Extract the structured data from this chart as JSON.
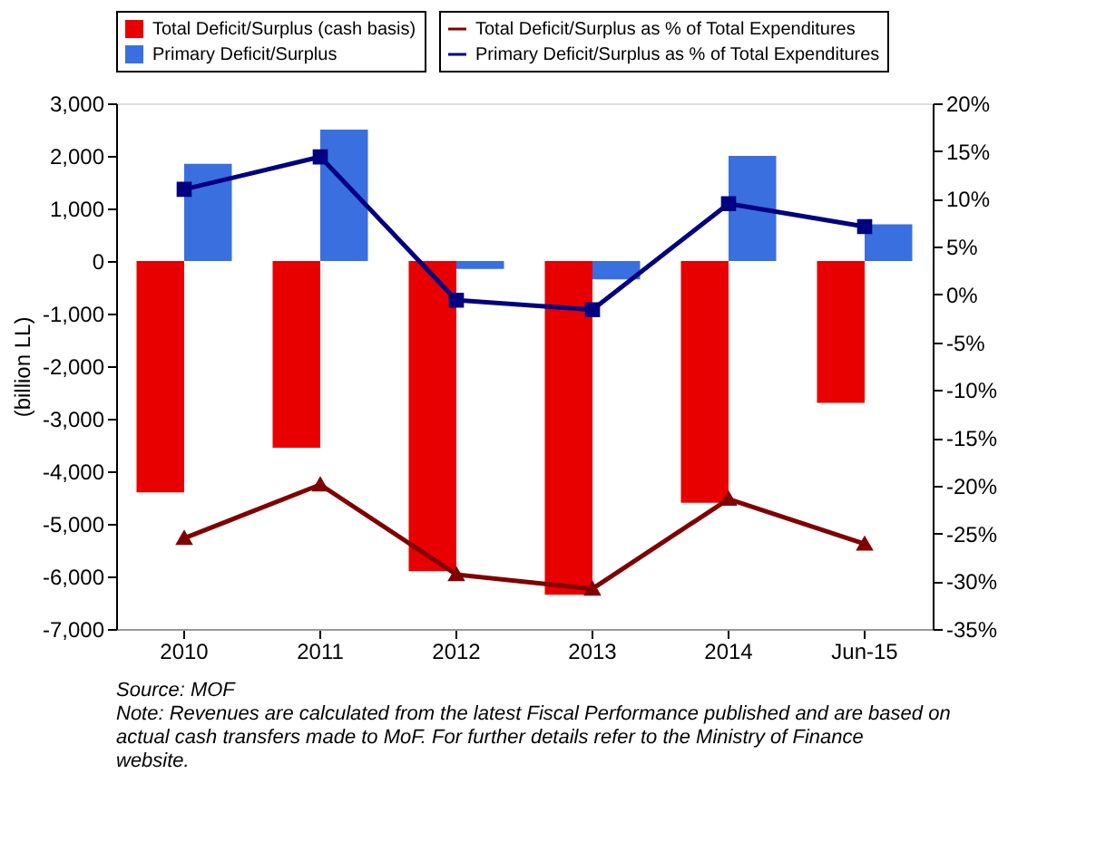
{
  "chart_data": {
    "type": "bar",
    "ylabel": "(billion LL)",
    "categories": [
      "2010",
      "2011",
      "2012",
      "2013",
      "2014",
      "Jun-15"
    ],
    "series": [
      {
        "name": "Total Deficit/Surplus (cash basis)",
        "color": "#e80000",
        "values": [
          -4400,
          -3550,
          -5900,
          -6350,
          -4600,
          -2700
        ]
      },
      {
        "name": "Primary Deficit/Surplus",
        "color": "#3a6fe0",
        "values": [
          1850,
          2500,
          -150,
          -350,
          2000,
          700
        ]
      },
      {
        "name": "Total Deficit/Surplus as % of Total Expenditures",
        "type": "line",
        "axis": "y2",
        "marker": "triangle",
        "color": "#800000",
        "values": [
          -25.5,
          -19.9,
          -29.3,
          -30.8,
          -21.4,
          -26.1
        ]
      },
      {
        "name": "Primary Deficit/Surplus as % of Total Expenditures",
        "type": "line",
        "axis": "y2",
        "marker": "square",
        "color": "#000080",
        "values": [
          11.0,
          14.4,
          -0.6,
          -1.6,
          9.5,
          7.1
        ]
      }
    ],
    "ylim": [
      -7000,
      3000
    ],
    "yticks": [
      {
        "value": -7000,
        "label": "-7,000"
      },
      {
        "value": -6000,
        "label": "-6,000"
      },
      {
        "value": -5000,
        "label": "-5,000"
      },
      {
        "value": -4000,
        "label": "-4,000"
      },
      {
        "value": -3000,
        "label": "-3,000"
      },
      {
        "value": -2000,
        "label": "-2,000"
      },
      {
        "value": -1000,
        "label": "-1,000"
      },
      0,
      {
        "value": 1000,
        "label": "1,000"
      },
      {
        "value": 2000,
        "label": "2,000"
      },
      {
        "value": 3000,
        "label": "3,000"
      }
    ],
    "y2lim": [
      -35,
      20
    ],
    "y2ticks": [
      {
        "value": -35,
        "label": "-35%"
      },
      {
        "value": -30,
        "label": "-30%"
      },
      {
        "value": -25,
        "label": "-25%"
      },
      {
        "value": -20,
        "label": "-20%"
      },
      {
        "value": -15,
        "label": "-15%"
      },
      {
        "value": -10,
        "label": "-10%"
      },
      {
        "value": -5,
        "label": "-5%"
      },
      {
        "value": 0,
        "label": "0%"
      },
      {
        "value": 5,
        "label": "5%"
      },
      {
        "value": 10,
        "label": "10%"
      },
      {
        "value": 15,
        "label": "15%"
      },
      {
        "value": 20,
        "label": "20%"
      }
    ],
    "grid": false,
    "legend": "top",
    "annotations": [
      "Source: MOF",
      "Note: Revenues are calculated from the latest Fiscal Performance published and are based on actual cash transfers made to MoF. For further details refer to the Ministry of Finance website."
    ]
  }
}
